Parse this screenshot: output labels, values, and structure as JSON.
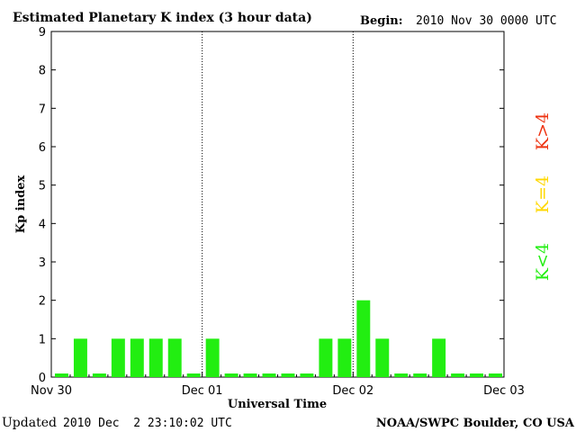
{
  "header": {
    "title": "Estimated Planetary K index (3 hour data)",
    "begin_label": "Begin:",
    "begin_value": "2010 Nov 30 0000 UTC"
  },
  "footer": {
    "updated_label": "Updated",
    "updated_value": "2010 Dec  2 23:10:02 UTC",
    "source": "NOAA/SWPC Boulder, CO USA"
  },
  "legend": {
    "high": "K>4",
    "equal": "K=4",
    "low": "K<4"
  },
  "colors": {
    "low": "#22ee11",
    "equal": "#ffd800",
    "high": "#ee3311"
  },
  "chart_data": {
    "type": "bar",
    "title": "Estimated Planetary K index (3 hour data)",
    "xlabel": "Universal Time",
    "ylabel": "Kp index",
    "ylim": [
      0,
      9
    ],
    "yticks": [
      "0",
      "1",
      "2",
      "3",
      "4",
      "5",
      "6",
      "7",
      "8",
      "9"
    ],
    "day_labels": [
      "Nov 30",
      "Dec 01",
      "Dec 02",
      "Dec 03"
    ],
    "grid": false,
    "day_separators": "dotted",
    "values": [
      0,
      1,
      0,
      1,
      1,
      1,
      1,
      0,
      1,
      0,
      0,
      0,
      0,
      0,
      1,
      1,
      2,
      1,
      0,
      0,
      1,
      0,
      0,
      0
    ]
  }
}
